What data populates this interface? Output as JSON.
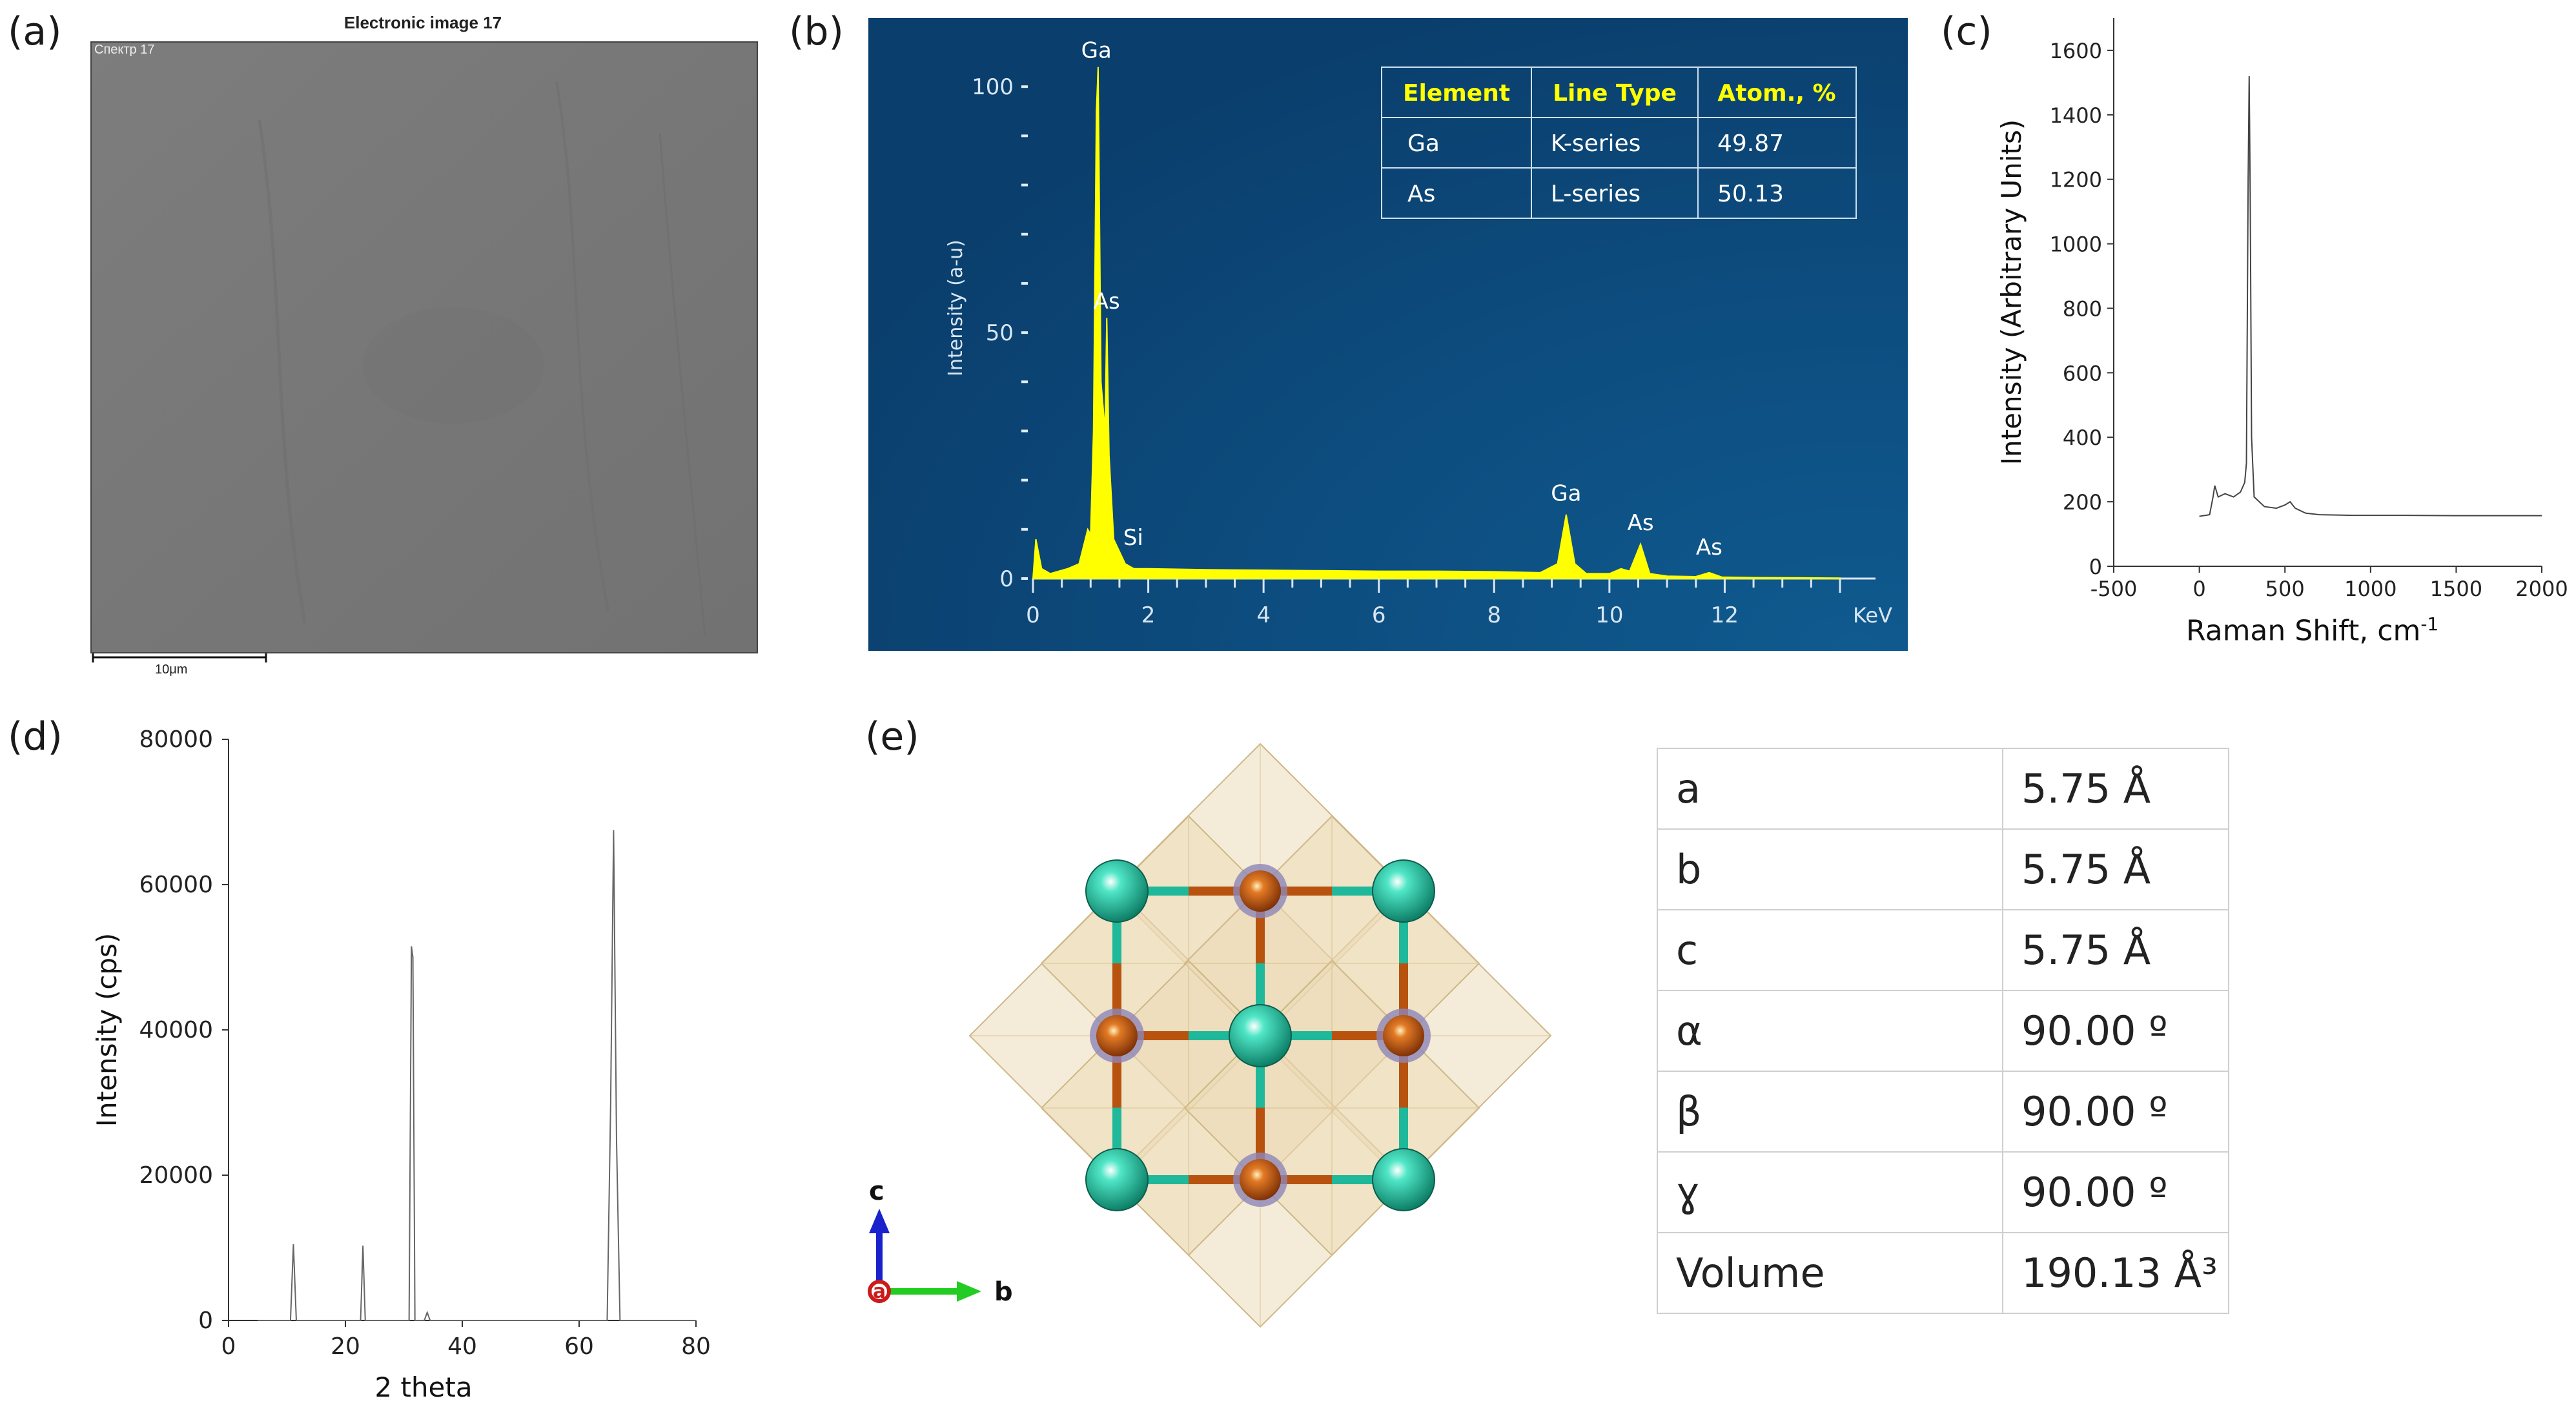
{
  "panels": {
    "a": "(a)",
    "b": "(b)",
    "c": "(c)",
    "d": "(d)",
    "e": "(e)"
  },
  "sem": {
    "title": "Electronic image 17",
    "spectrum_label": "Спектр 17",
    "scale_label": "10μm"
  },
  "eds_table": {
    "headers": [
      "Element",
      "Line Type",
      "Atom., %"
    ],
    "rows": [
      [
        "Ga",
        "K-series",
        "49.87"
      ],
      [
        "As",
        "L-series",
        "50.13"
      ]
    ]
  },
  "axes_labels": {
    "eds_unit": "KeV",
    "raman_unit_sup": "-1"
  },
  "lattice": {
    "rows": [
      {
        "param": "a",
        "value": "5.75 Å"
      },
      {
        "param": "b",
        "value": "5.75 Å"
      },
      {
        "param": "c",
        "value": "5.75 Å"
      },
      {
        "param": "α",
        "value": "90.00 º"
      },
      {
        "param": "β",
        "value": "90.00 º"
      },
      {
        "param": "ɣ",
        "value": "90.00 º"
      },
      {
        "param": "Volume",
        "value": "190.13 Å³"
      }
    ]
  },
  "crystal": {
    "axis_labels": {
      "c": "c",
      "a": "a",
      "b": "b"
    }
  },
  "colors": {
    "eds_bg": "#0c4a7a",
    "eds_spectrum": "#ffff00",
    "eds_header": "#ffff00",
    "ga_atom": "#1fb89a",
    "as_atom": "#b8520f",
    "polyhedra": "#e9d7ae"
  },
  "chart_data": [
    {
      "id": "eds",
      "type": "line",
      "title": "",
      "xlabel": "KeV",
      "ylabel": "Intensity (a-u)",
      "xlim": [
        0,
        14
      ],
      "ylim": [
        0,
        110
      ],
      "xticks": [
        0,
        2,
        4,
        6,
        8,
        10,
        12
      ],
      "yticks": [
        0,
        50,
        100
      ],
      "x": [
        0,
        0.05,
        0.15,
        0.3,
        0.6,
        0.8,
        0.95,
        1.0,
        1.05,
        1.1,
        1.13,
        1.18,
        1.25,
        1.28,
        1.32,
        1.4,
        1.6,
        1.75,
        2.0,
        3.0,
        4.0,
        5.0,
        6.0,
        7.0,
        8.0,
        8.8,
        9.1,
        9.25,
        9.4,
        9.6,
        10.0,
        10.2,
        10.35,
        10.54,
        10.7,
        11.0,
        11.5,
        11.73,
        11.95,
        12.5,
        14.0
      ],
      "y": [
        0,
        8,
        2,
        1,
        2,
        3,
        10,
        9,
        30,
        95,
        104,
        40,
        30,
        53,
        25,
        8,
        3,
        2,
        2,
        1.8,
        1.7,
        1.6,
        1.5,
        1.5,
        1.4,
        1.2,
        3,
        13,
        3,
        1,
        1,
        2,
        1.5,
        7,
        1,
        0.5,
        0.4,
        1.2,
        0.3,
        0.2,
        0.1
      ],
      "peak_labels": [
        {
          "label": "Ga",
          "x": 1.1,
          "y": 104
        },
        {
          "label": "As",
          "x": 1.28,
          "y": 53
        },
        {
          "label": "Si",
          "x": 1.74,
          "y": 5
        },
        {
          "label": "Ga",
          "x": 9.25,
          "y": 14
        },
        {
          "label": "As",
          "x": 10.54,
          "y": 8
        },
        {
          "label": "As",
          "x": 11.73,
          "y": 3
        }
      ]
    },
    {
      "id": "raman",
      "type": "line",
      "title": "",
      "xlabel": "Raman Shift, cm",
      "ylabel": "Intensity (Arbitrary Units)",
      "xlim": [
        -500,
        2000
      ],
      "ylim": [
        0,
        1700
      ],
      "xticks": [
        -500,
        0,
        500,
        1000,
        1500,
        2000
      ],
      "yticks": [
        0,
        200,
        400,
        600,
        800,
        1000,
        1200,
        1400,
        1600
      ],
      "x": [
        0,
        60,
        80,
        90,
        110,
        150,
        200,
        240,
        265,
        275,
        285,
        291,
        297,
        305,
        320,
        380,
        450,
        500,
        530,
        560,
        620,
        700,
        900,
        1200,
        1500,
        1800,
        2000
      ],
      "y": [
        155,
        160,
        215,
        250,
        215,
        225,
        215,
        230,
        260,
        320,
        1200,
        1520,
        1150,
        400,
        215,
        185,
        180,
        190,
        200,
        180,
        165,
        160,
        158,
        158,
        157,
        157,
        157
      ]
    },
    {
      "id": "xrd",
      "type": "line",
      "title": "",
      "xlabel": "2 theta",
      "ylabel": "Intensity (cps)",
      "xlim": [
        0,
        80
      ],
      "ylim": [
        0,
        80000
      ],
      "xticks": [
        0,
        20,
        40,
        60,
        80
      ],
      "yticks": [
        0,
        20000,
        40000,
        60000,
        80000
      ],
      "x": [
        5,
        10.6,
        11.1,
        11.6,
        12.1,
        22.6,
        23.0,
        23.4,
        23.8,
        30.9,
        31.3,
        31.55,
        31.9,
        32.3,
        33.5,
        34.0,
        34.5,
        64.8,
        65.4,
        65.9,
        66.4,
        67.0,
        80
      ],
      "y": [
        0,
        0,
        10500,
        0,
        0,
        0,
        10300,
        0,
        0,
        0,
        51500,
        50000,
        0,
        0,
        0,
        1100,
        0,
        0,
        30000,
        67500,
        25000,
        0,
        0
      ]
    }
  ]
}
